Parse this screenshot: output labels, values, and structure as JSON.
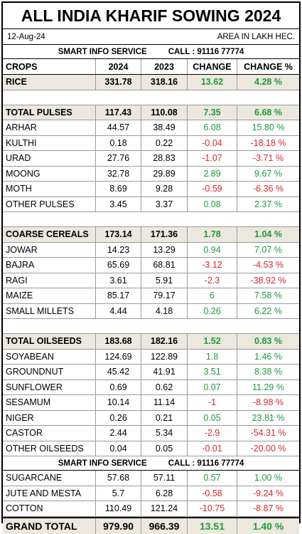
{
  "title": "ALL INDIA KHARIF SOWING 2024",
  "date": "12-Aug-24",
  "unit_note": "AREA IN LAKH HEC.",
  "service": {
    "name": "SMART INFO SERVICE",
    "call": "CALL : 91116 77774"
  },
  "headers": [
    "CROPS",
    "2024",
    "2023",
    "CHANGE",
    "CHANGE %"
  ],
  "rice": [
    "RICE",
    "331.78",
    "318.16",
    "13.62",
    "4.28 %"
  ],
  "pulses_total": [
    "TOTAL PULSES",
    "117.43",
    "110.08",
    "7.35",
    "6.68 %"
  ],
  "pulses": [
    [
      "ARHAR",
      "44.57",
      "38.49",
      "6.08",
      "15.80 %"
    ],
    [
      "KULTHI",
      "0.18",
      "0.22",
      "-0.04",
      "-18.18 %"
    ],
    [
      "URAD",
      "27.76",
      "28.83",
      "-1.07",
      "-3.71 %"
    ],
    [
      "MOONG",
      "32.78",
      "29.89",
      "2.89",
      "9.67 %"
    ],
    [
      "MOTH",
      "8.69",
      "9.28",
      "-0.59",
      "-6.36 %"
    ],
    [
      "OTHER PULSES",
      "3.45",
      "3.37",
      "0.08",
      "2.37 %"
    ]
  ],
  "cereals_total": [
    "COARSE CEREALS",
    "173.14",
    "171.36",
    "1.78",
    "1.04 %"
  ],
  "cereals": [
    [
      "JOWAR",
      "14.23",
      "13.29",
      "0.94",
      "7.07 %"
    ],
    [
      "BAJRA",
      "65.69",
      "68.81",
      "-3.12",
      "-4.53 %"
    ],
    [
      "RAGI",
      "3.61",
      "5.91",
      "-2.3",
      "-38.92 %"
    ],
    [
      "MAIZE",
      "85.17",
      "79.17",
      "6",
      "7.58 %"
    ],
    [
      "SMALL MILLETS",
      "4.44",
      "4.18",
      "0.26",
      "6.22 %"
    ]
  ],
  "oilseeds_total": [
    "TOTAL OILSEEDS",
    "183.68",
    "182.16",
    "1.52",
    "0.83 %"
  ],
  "oilseeds": [
    [
      "SOYABEAN",
      "124.69",
      "122.89",
      "1.8",
      "1.46 %"
    ],
    [
      "GROUNDNUT",
      "45.42",
      "41.91",
      "3.51",
      "8.38 %"
    ],
    [
      "SUNFLOWER",
      "0.69",
      "0.62",
      "0.07",
      "11.29 %"
    ],
    [
      "SESAMUM",
      "10.14",
      "11.14",
      "-1",
      "-8.98 %"
    ],
    [
      "NIGER",
      "0.26",
      "0.21",
      "0.05",
      "23.81 %"
    ],
    [
      "CASTOR",
      "2.44",
      "5.34",
      "-2.9",
      "-54.31 %"
    ],
    [
      "OTHER OILSEEDS",
      "0.04",
      "0.05",
      "-0.01",
      "-20.00 %"
    ]
  ],
  "others": [
    [
      "SUGARCANE",
      "57.68",
      "57.11",
      "0.57",
      "1.00 %"
    ],
    [
      "JUTE AND MESTA",
      "5.7",
      "6.28",
      "-0.58",
      "-9.24 %"
    ],
    [
      "COTTON",
      "110.49",
      "121.24",
      "-10.75",
      "-8.87 %"
    ]
  ],
  "grand_total": [
    "GRAND TOTAL",
    "979.90",
    "966.39",
    "13.51",
    "1.40 %"
  ],
  "colors": {
    "positive": "#1e9a3a",
    "negative": "#d42a2a",
    "shade": "#ece8de"
  }
}
